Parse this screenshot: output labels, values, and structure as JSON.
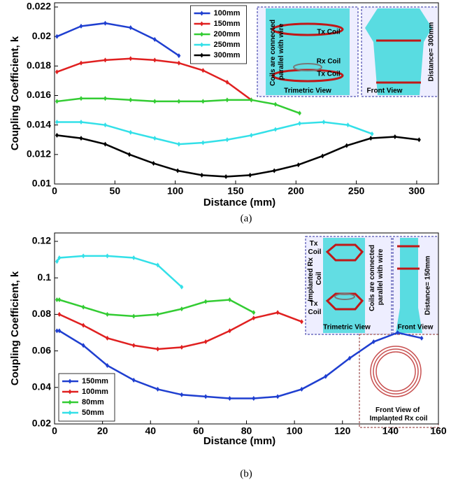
{
  "chart_data": [
    {
      "type": "line",
      "panel_label": "(a)",
      "x_label": "Distance (mm)",
      "y_label": "Coupling Coefficient, k",
      "xlim": [
        0,
        318
      ],
      "ylim": [
        0.01,
        0.022
      ],
      "xticks": [
        0,
        50,
        100,
        150,
        200,
        250,
        300
      ],
      "yticks": [
        0.01,
        0.012,
        0.014,
        0.016,
        0.018,
        0.02,
        0.022
      ],
      "grid": false,
      "legend_position": "upper center",
      "series": [
        {
          "name": "100mm",
          "color": "#1f3fd0",
          "x": [
            2,
            22,
            42,
            63,
            83,
            103
          ],
          "values": [
            0.02,
            0.0207,
            0.0209,
            0.0206,
            0.0198,
            0.0187
          ]
        },
        {
          "name": "150mm",
          "color": "#e02020",
          "x": [
            2,
            22,
            42,
            63,
            83,
            103,
            123,
            143,
            163
          ],
          "values": [
            0.0176,
            0.0182,
            0.0184,
            0.0185,
            0.0184,
            0.0182,
            0.0177,
            0.0169,
            0.0157
          ]
        },
        {
          "name": "200mm",
          "color": "#33cc33",
          "x": [
            2,
            22,
            42,
            63,
            83,
            103,
            123,
            143,
            163,
            183,
            203
          ],
          "values": [
            0.0156,
            0.0158,
            0.0158,
            0.0157,
            0.0156,
            0.0156,
            0.0156,
            0.0157,
            0.0157,
            0.0154,
            0.0148
          ]
        },
        {
          "name": "250mm",
          "color": "#33e0e8",
          "x": [
            2,
            22,
            42,
            63,
            83,
            103,
            123,
            143,
            163,
            183,
            203,
            223,
            243,
            263
          ],
          "values": [
            0.0142,
            0.0142,
            0.014,
            0.0135,
            0.0131,
            0.0127,
            0.0128,
            0.013,
            0.0133,
            0.0137,
            0.0141,
            0.0142,
            0.014,
            0.0134
          ]
        },
        {
          "name": "300mm",
          "color": "#000000",
          "x": [
            2,
            22,
            42,
            62,
            82,
            102,
            122,
            142,
            162,
            182,
            202,
            222,
            242,
            262,
            282,
            302
          ],
          "values": [
            0.0133,
            0.0131,
            0.0127,
            0.012,
            0.0114,
            0.0109,
            0.0106,
            0.0105,
            0.0106,
            0.0109,
            0.0113,
            0.0119,
            0.0126,
            0.0131,
            0.0132,
            0.013
          ]
        }
      ],
      "annotations": [
        "Tx Coil",
        "Rx Coil",
        "Tx Coil",
        "Coils are connected parallel with wire",
        "Trimetric View",
        "Front View",
        "Distance= 300mm"
      ]
    },
    {
      "type": "line",
      "panel_label": "(b)",
      "x_label": "Distance (mm)",
      "y_label": "Coupling Coefficient, k",
      "xlim": [
        0,
        160
      ],
      "ylim": [
        0.02,
        0.12
      ],
      "xticks": [
        0,
        20,
        40,
        60,
        80,
        100,
        120,
        140,
        160
      ],
      "yticks": [
        0.02,
        0.04,
        0.06,
        0.08,
        0.1,
        0.12
      ],
      "grid": false,
      "legend_position": "lower left",
      "series": [
        {
          "name": "150mm",
          "color": "#1f3fd0",
          "x": [
            1,
            2,
            12,
            22,
            33,
            43,
            53,
            63,
            73,
            83,
            93,
            103,
            113,
            123,
            133,
            143,
            153
          ],
          "values": [
            0.071,
            0.071,
            0.063,
            0.052,
            0.044,
            0.039,
            0.036,
            0.035,
            0.034,
            0.034,
            0.035,
            0.039,
            0.046,
            0.056,
            0.065,
            0.07,
            0.067
          ]
        },
        {
          "name": "100mm",
          "color": "#e02020",
          "x": [
            2,
            12,
            22,
            33,
            43,
            53,
            63,
            73,
            83,
            93,
            103
          ],
          "values": [
            0.08,
            0.074,
            0.067,
            0.063,
            0.061,
            0.062,
            0.065,
            0.071,
            0.078,
            0.081,
            0.076
          ]
        },
        {
          "name": "80mm",
          "color": "#33cc33",
          "x": [
            1,
            2,
            12,
            22,
            33,
            43,
            53,
            63,
            73,
            83
          ],
          "values": [
            0.088,
            0.088,
            0.084,
            0.08,
            0.079,
            0.08,
            0.083,
            0.087,
            0.088,
            0.081
          ]
        },
        {
          "name": "50mm",
          "color": "#33e0e8",
          "x": [
            1,
            2,
            12,
            22,
            33,
            43,
            53
          ],
          "values": [
            0.109,
            0.111,
            0.112,
            0.112,
            0.111,
            0.107,
            0.095
          ]
        }
      ],
      "annotations": [
        "Tx Coil",
        "Implanted Rx Coil",
        "Tx Coil",
        "Coils are connected parallel with wire",
        "Trimetric View",
        "Distance= 150mm",
        "Front View",
        "Front View of Implanted Rx coil"
      ]
    }
  ]
}
